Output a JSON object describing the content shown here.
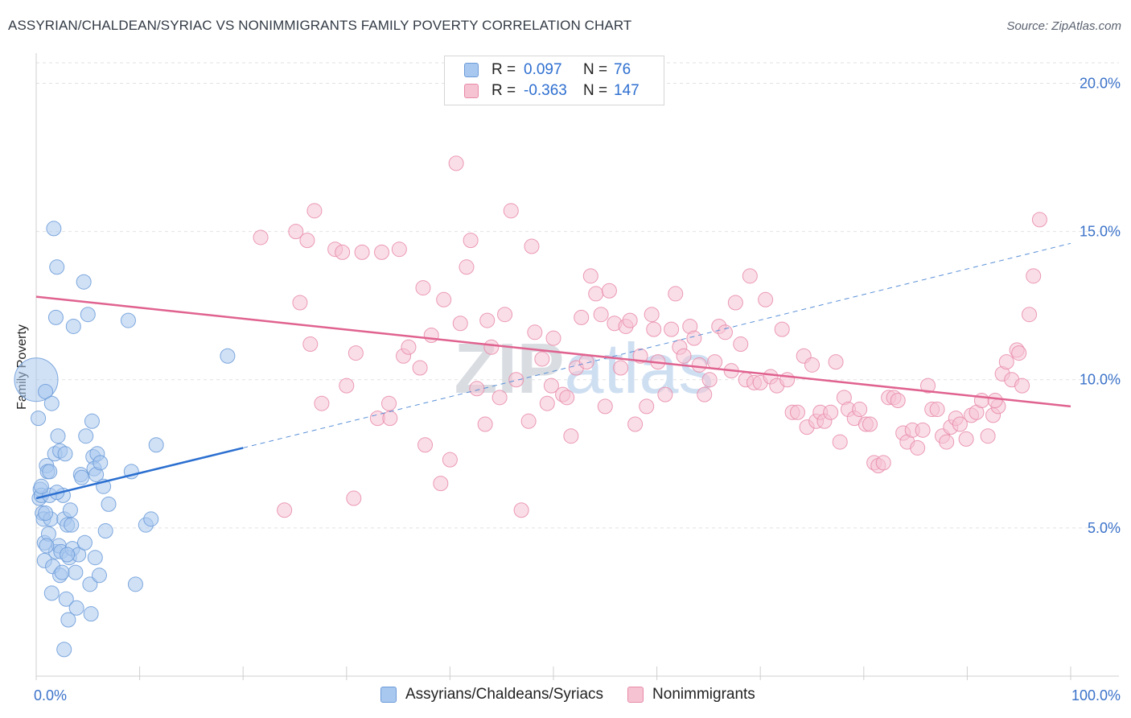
{
  "title": "ASSYRIAN/CHALDEAN/SYRIAC VS NONIMMIGRANTS FAMILY POVERTY CORRELATION CHART",
  "source": "Source: ZipAtlas.com",
  "watermark": "ZIPatlas",
  "legend": {
    "r_label": "R =",
    "n_label": "N =",
    "rows": [
      {
        "name": "Assyrians/Chaldeans/Syriacs",
        "r": "0.097",
        "n": "76",
        "fill": "#a9c8ef",
        "stroke": "#6a9ad8"
      },
      {
        "name": "Nonimmigrants",
        "r": "-0.363",
        "n": "147",
        "fill": "#f6c3d3",
        "stroke": "#e88aa8"
      }
    ]
  },
  "chart_data": {
    "type": "scatter",
    "title": "ASSYRIAN/CHALDEAN/SYRIAC VS NONIMMIGRANTS FAMILY POVERTY CORRELATION CHART",
    "xlabel": "",
    "ylabel": "Family Poverty",
    "xlim": [
      0,
      100
    ],
    "ylim": [
      0,
      20.8
    ],
    "x_tick_labels": [
      "0.0%",
      "100.0%"
    ],
    "y_ticks": [
      5,
      10,
      15,
      20
    ],
    "y_tick_labels": [
      "5.0%",
      "10.0%",
      "15.0%",
      "20.0%"
    ],
    "grid": "horizontal-dashed",
    "series": [
      {
        "name": "Assyrians/Chaldeans/Syriacs",
        "color": "#6a9ad8",
        "fill": "#a9c8ef",
        "trend": {
          "x": [
            0,
            20
          ],
          "y": [
            6.0,
            7.7
          ],
          "extended_to": [
            100,
            14.6
          ]
        },
        "points": [
          {
            "x": 0.0,
            "y": 10.0,
            "s": 3
          },
          {
            "x": 0.2,
            "y": 8.7
          },
          {
            "x": 0.3,
            "y": 6.0
          },
          {
            "x": 0.4,
            "y": 6.3
          },
          {
            "x": 0.5,
            "y": 6.1
          },
          {
            "x": 0.6,
            "y": 5.5
          },
          {
            "x": 0.7,
            "y": 5.3
          },
          {
            "x": 0.8,
            "y": 4.5
          },
          {
            "x": 0.8,
            "y": 3.9
          },
          {
            "x": 0.9,
            "y": 9.6
          },
          {
            "x": 1.0,
            "y": 7.1
          },
          {
            "x": 1.1,
            "y": 6.9
          },
          {
            "x": 1.2,
            "y": 4.8
          },
          {
            "x": 1.3,
            "y": 6.1
          },
          {
            "x": 1.4,
            "y": 5.3
          },
          {
            "x": 1.5,
            "y": 9.2
          },
          {
            "x": 1.5,
            "y": 2.8
          },
          {
            "x": 1.6,
            "y": 3.7
          },
          {
            "x": 1.7,
            "y": 15.1
          },
          {
            "x": 1.8,
            "y": 7.5
          },
          {
            "x": 1.9,
            "y": 4.2
          },
          {
            "x": 1.9,
            "y": 12.1
          },
          {
            "x": 2.0,
            "y": 13.8
          },
          {
            "x": 2.1,
            "y": 8.1
          },
          {
            "x": 2.2,
            "y": 4.4
          },
          {
            "x": 2.3,
            "y": 7.6
          },
          {
            "x": 2.3,
            "y": 3.4
          },
          {
            "x": 2.4,
            "y": 4.2
          },
          {
            "x": 2.5,
            "y": 3.5
          },
          {
            "x": 2.6,
            "y": 6.1
          },
          {
            "x": 2.7,
            "y": 5.3
          },
          {
            "x": 2.8,
            "y": 7.5
          },
          {
            "x": 2.9,
            "y": 2.6
          },
          {
            "x": 3.0,
            "y": 5.1
          },
          {
            "x": 3.1,
            "y": 1.9
          },
          {
            "x": 3.2,
            "y": 4.0
          },
          {
            "x": 3.3,
            "y": 5.6
          },
          {
            "x": 3.4,
            "y": 5.1
          },
          {
            "x": 3.5,
            "y": 4.3
          },
          {
            "x": 3.6,
            "y": 11.8
          },
          {
            "x": 3.8,
            "y": 3.5
          },
          {
            "x": 3.9,
            "y": 2.3
          },
          {
            "x": 4.1,
            "y": 4.1
          },
          {
            "x": 4.3,
            "y": 6.8
          },
          {
            "x": 4.4,
            "y": 6.7
          },
          {
            "x": 4.6,
            "y": 13.3
          },
          {
            "x": 4.7,
            "y": 4.5
          },
          {
            "x": 4.8,
            "y": 8.1
          },
          {
            "x": 5.0,
            "y": 12.2
          },
          {
            "x": 5.2,
            "y": 3.1
          },
          {
            "x": 5.3,
            "y": 2.1
          },
          {
            "x": 5.4,
            "y": 8.6
          },
          {
            "x": 5.5,
            "y": 7.4
          },
          {
            "x": 5.6,
            "y": 7.0
          },
          {
            "x": 5.7,
            "y": 4.0
          },
          {
            "x": 5.8,
            "y": 6.8
          },
          {
            "x": 5.9,
            "y": 7.5
          },
          {
            "x": 6.1,
            "y": 3.4
          },
          {
            "x": 6.2,
            "y": 7.2
          },
          {
            "x": 6.5,
            "y": 6.4
          },
          {
            "x": 6.7,
            "y": 4.9
          },
          {
            "x": 7.0,
            "y": 5.8
          },
          {
            "x": 8.9,
            "y": 12.0
          },
          {
            "x": 9.2,
            "y": 6.9
          },
          {
            "x": 9.6,
            "y": 3.1
          },
          {
            "x": 10.6,
            "y": 5.1
          },
          {
            "x": 11.1,
            "y": 5.3
          },
          {
            "x": 11.6,
            "y": 7.8
          },
          {
            "x": 18.5,
            "y": 10.8
          },
          {
            "x": 2.7,
            "y": 0.9
          },
          {
            "x": 0.5,
            "y": 6.4
          },
          {
            "x": 1.0,
            "y": 4.4
          },
          {
            "x": 1.3,
            "y": 6.9
          },
          {
            "x": 3.0,
            "y": 4.1
          },
          {
            "x": 0.9,
            "y": 5.5
          },
          {
            "x": 2.0,
            "y": 6.2
          }
        ]
      },
      {
        "name": "Nonimmigrants",
        "color": "#e8729b",
        "fill": "#f6c3d3",
        "trend": {
          "x": [
            0,
            100
          ],
          "y": [
            12.8,
            9.1
          ]
        },
        "points": [
          {
            "x": 21.7,
            "y": 14.8
          },
          {
            "x": 24.0,
            "y": 5.6
          },
          {
            "x": 25.1,
            "y": 15.0
          },
          {
            "x": 25.5,
            "y": 12.6
          },
          {
            "x": 26.2,
            "y": 14.7
          },
          {
            "x": 26.5,
            "y": 11.2
          },
          {
            "x": 26.9,
            "y": 15.7
          },
          {
            "x": 27.6,
            "y": 9.2
          },
          {
            "x": 28.9,
            "y": 14.4
          },
          {
            "x": 29.6,
            "y": 14.3
          },
          {
            "x": 30.0,
            "y": 9.8
          },
          {
            "x": 30.7,
            "y": 6.0
          },
          {
            "x": 30.9,
            "y": 10.9
          },
          {
            "x": 31.5,
            "y": 14.3
          },
          {
            "x": 33.0,
            "y": 8.7
          },
          {
            "x": 33.4,
            "y": 14.3
          },
          {
            "x": 34.1,
            "y": 9.2
          },
          {
            "x": 34.2,
            "y": 8.7
          },
          {
            "x": 35.1,
            "y": 14.4
          },
          {
            "x": 35.5,
            "y": 10.8
          },
          {
            "x": 36.0,
            "y": 11.1
          },
          {
            "x": 37.1,
            "y": 10.4
          },
          {
            "x": 37.4,
            "y": 13.1
          },
          {
            "x": 37.6,
            "y": 7.8
          },
          {
            "x": 38.2,
            "y": 11.5
          },
          {
            "x": 39.1,
            "y": 6.5
          },
          {
            "x": 39.4,
            "y": 12.7
          },
          {
            "x": 40.0,
            "y": 7.3
          },
          {
            "x": 40.6,
            "y": 17.3
          },
          {
            "x": 41.0,
            "y": 11.9
          },
          {
            "x": 41.6,
            "y": 13.8
          },
          {
            "x": 42.0,
            "y": 14.7
          },
          {
            "x": 42.6,
            "y": 9.7
          },
          {
            "x": 43.4,
            "y": 8.5
          },
          {
            "x": 43.6,
            "y": 12.0
          },
          {
            "x": 44.0,
            "y": 11.1
          },
          {
            "x": 44.8,
            "y": 9.4
          },
          {
            "x": 45.3,
            "y": 12.2
          },
          {
            "x": 45.9,
            "y": 15.7
          },
          {
            "x": 46.4,
            "y": 10.0
          },
          {
            "x": 46.9,
            "y": 5.6
          },
          {
            "x": 47.6,
            "y": 8.6
          },
          {
            "x": 47.9,
            "y": 14.5
          },
          {
            "x": 48.2,
            "y": 11.6
          },
          {
            "x": 48.9,
            "y": 10.7
          },
          {
            "x": 49.4,
            "y": 9.2
          },
          {
            "x": 49.8,
            "y": 9.8
          },
          {
            "x": 50.0,
            "y": 11.4
          },
          {
            "x": 50.9,
            "y": 9.5
          },
          {
            "x": 51.3,
            "y": 9.4
          },
          {
            "x": 51.7,
            "y": 8.1
          },
          {
            "x": 52.2,
            "y": 10.4
          },
          {
            "x": 52.7,
            "y": 12.1
          },
          {
            "x": 53.2,
            "y": 10.6
          },
          {
            "x": 53.6,
            "y": 13.5
          },
          {
            "x": 54.1,
            "y": 12.9
          },
          {
            "x": 54.6,
            "y": 12.2
          },
          {
            "x": 55.0,
            "y": 9.1
          },
          {
            "x": 55.4,
            "y": 13.0
          },
          {
            "x": 55.9,
            "y": 11.9
          },
          {
            "x": 56.5,
            "y": 10.4
          },
          {
            "x": 57.0,
            "y": 11.8
          },
          {
            "x": 57.4,
            "y": 12.0
          },
          {
            "x": 57.9,
            "y": 8.5
          },
          {
            "x": 58.4,
            "y": 10.8
          },
          {
            "x": 59.0,
            "y": 9.1
          },
          {
            "x": 59.5,
            "y": 12.2
          },
          {
            "x": 59.7,
            "y": 11.7
          },
          {
            "x": 60.1,
            "y": 10.6
          },
          {
            "x": 60.8,
            "y": 9.5
          },
          {
            "x": 61.4,
            "y": 11.7
          },
          {
            "x": 61.8,
            "y": 12.9
          },
          {
            "x": 62.2,
            "y": 11.1
          },
          {
            "x": 62.6,
            "y": 10.8
          },
          {
            "x": 63.2,
            "y": 11.8
          },
          {
            "x": 63.6,
            "y": 11.4
          },
          {
            "x": 64.1,
            "y": 10.5
          },
          {
            "x": 64.6,
            "y": 9.5
          },
          {
            "x": 65.1,
            "y": 10.0
          },
          {
            "x": 65.6,
            "y": 10.6
          },
          {
            "x": 66.0,
            "y": 11.8
          },
          {
            "x": 66.6,
            "y": 11.6
          },
          {
            "x": 67.2,
            "y": 10.3
          },
          {
            "x": 67.6,
            "y": 12.6
          },
          {
            "x": 68.1,
            "y": 11.2
          },
          {
            "x": 68.6,
            "y": 10.0
          },
          {
            "x": 69.0,
            "y": 13.5
          },
          {
            "x": 69.4,
            "y": 9.9
          },
          {
            "x": 70.0,
            "y": 9.9
          },
          {
            "x": 70.5,
            "y": 12.7
          },
          {
            "x": 71.0,
            "y": 10.1
          },
          {
            "x": 71.6,
            "y": 9.8
          },
          {
            "x": 72.1,
            "y": 11.7
          },
          {
            "x": 72.6,
            "y": 10.0
          },
          {
            "x": 73.1,
            "y": 8.9
          },
          {
            "x": 73.6,
            "y": 8.9
          },
          {
            "x": 74.2,
            "y": 10.8
          },
          {
            "x": 74.5,
            "y": 8.4
          },
          {
            "x": 75.0,
            "y": 10.5
          },
          {
            "x": 75.4,
            "y": 8.6
          },
          {
            "x": 75.8,
            "y": 8.9
          },
          {
            "x": 76.2,
            "y": 8.6
          },
          {
            "x": 76.8,
            "y": 8.9
          },
          {
            "x": 77.3,
            "y": 10.6
          },
          {
            "x": 77.7,
            "y": 7.9
          },
          {
            "x": 78.1,
            "y": 9.4
          },
          {
            "x": 78.5,
            "y": 9.0
          },
          {
            "x": 79.1,
            "y": 8.7
          },
          {
            "x": 79.6,
            "y": 9.0
          },
          {
            "x": 80.2,
            "y": 8.5
          },
          {
            "x": 80.6,
            "y": 8.5
          },
          {
            "x": 81.0,
            "y": 7.2
          },
          {
            "x": 81.4,
            "y": 7.1
          },
          {
            "x": 81.9,
            "y": 7.2
          },
          {
            "x": 82.4,
            "y": 9.4
          },
          {
            "x": 82.9,
            "y": 9.4
          },
          {
            "x": 83.3,
            "y": 9.3
          },
          {
            "x": 83.8,
            "y": 8.2
          },
          {
            "x": 84.2,
            "y": 7.9
          },
          {
            "x": 84.7,
            "y": 8.3
          },
          {
            "x": 85.2,
            "y": 7.7
          },
          {
            "x": 85.7,
            "y": 8.3
          },
          {
            "x": 86.2,
            "y": 9.8
          },
          {
            "x": 86.6,
            "y": 9.0
          },
          {
            "x": 87.1,
            "y": 9.0
          },
          {
            "x": 87.6,
            "y": 8.1
          },
          {
            "x": 88.0,
            "y": 7.9
          },
          {
            "x": 88.4,
            "y": 8.4
          },
          {
            "x": 88.9,
            "y": 8.7
          },
          {
            "x": 89.3,
            "y": 8.5
          },
          {
            "x": 89.9,
            "y": 8.0
          },
          {
            "x": 90.4,
            "y": 8.8
          },
          {
            "x": 90.9,
            "y": 8.9
          },
          {
            "x": 91.4,
            "y": 9.3
          },
          {
            "x": 92.0,
            "y": 8.1
          },
          {
            "x": 92.5,
            "y": 8.8
          },
          {
            "x": 93.0,
            "y": 9.1
          },
          {
            "x": 93.4,
            "y": 10.2
          },
          {
            "x": 93.8,
            "y": 10.6
          },
          {
            "x": 94.3,
            "y": 10.0
          },
          {
            "x": 94.8,
            "y": 11.0
          },
          {
            "x": 95.3,
            "y": 9.8
          },
          {
            "x": 96.0,
            "y": 12.2
          },
          {
            "x": 96.4,
            "y": 13.5
          },
          {
            "x": 97.0,
            "y": 15.4
          },
          {
            "x": 95.0,
            "y": 10.9
          },
          {
            "x": 92.7,
            "y": 9.3
          }
        ]
      }
    ]
  }
}
